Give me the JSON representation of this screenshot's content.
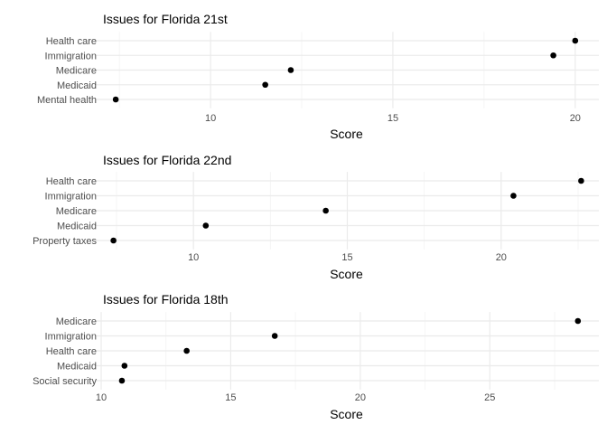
{
  "colors": {
    "grid_major": "#ebebeb",
    "grid_minor": "#f5f5f5",
    "point": "#000000"
  },
  "chart_data": [
    {
      "type": "scatter",
      "title": "Issues for Florida 21st",
      "xlabel": "Score",
      "categories": [
        "Health care",
        "Immigration",
        "Medicare",
        "Medicaid",
        "Mental health"
      ],
      "values": [
        20.0,
        19.4,
        12.2,
        11.5,
        7.4
      ],
      "xlim": [
        7.0,
        20.5
      ],
      "xticks": [
        10,
        15,
        20
      ]
    },
    {
      "type": "scatter",
      "title": "Issues for Florida 22nd",
      "xlabel": "Score",
      "categories": [
        "Health care",
        "Immigration",
        "Medicare",
        "Medicaid",
        "Property taxes"
      ],
      "values": [
        22.6,
        20.4,
        14.3,
        10.4,
        7.4
      ],
      "xlim": [
        7.0,
        23.0
      ],
      "xticks": [
        10,
        15,
        20
      ]
    },
    {
      "type": "scatter",
      "title": "Issues for Florida 18th",
      "xlabel": "Score",
      "categories": [
        "Medicare",
        "Immigration",
        "Health care",
        "Medicaid",
        "Social security"
      ],
      "values": [
        28.4,
        16.7,
        13.3,
        10.9,
        10.8
      ],
      "xlim": [
        10.0,
        29.0
      ],
      "xticks": [
        10,
        15,
        20,
        25
      ]
    }
  ]
}
